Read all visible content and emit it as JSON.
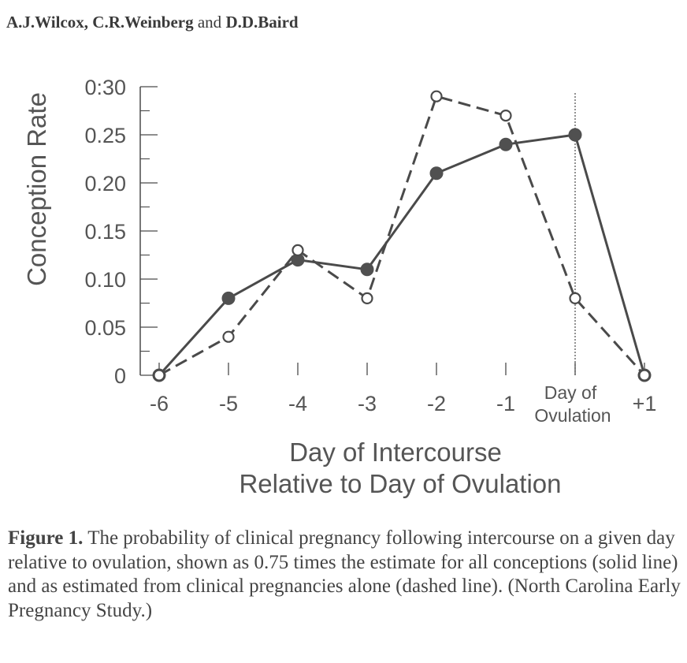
{
  "header": {
    "author1": "A.J.Wilcox,",
    "author2": "C.R.Weinberg",
    "conjunction": "and",
    "author3": "D.D.Baird"
  },
  "caption": {
    "label": "Figure 1.",
    "text": "The probability of clinical pregnancy following intercourse on a given day relative to ovulation, shown as 0.75 times the estimate for all conceptions (solid line) and as estimated from clinical pregnancies alone (dashed line). (North Carolina Early Pregnancy Study.)"
  },
  "chart_data": {
    "type": "line",
    "xlabel_line1": "Day of Intercourse",
    "xlabel_line2": "Relative to Day of Ovulation",
    "ylabel": "Conception Rate",
    "x": [
      -6,
      -5,
      -4,
      -3,
      -2,
      -1,
      0,
      1
    ],
    "x_tick_labels": [
      "-6",
      "-5",
      "-4",
      "-3",
      "-2",
      "-1",
      "",
      "+1"
    ],
    "ovulation_label_line1": "Day of",
    "ovulation_label_line2": "Ovulation",
    "y_ticks": [
      0,
      0.05,
      0.1,
      0.15,
      0.2,
      0.25,
      0.3
    ],
    "y_tick_labels": [
      "0",
      "0.05",
      "0.10",
      "0.15",
      "0.20",
      "0.25",
      "0:30"
    ],
    "ylim": [
      0,
      0.3
    ],
    "xlim": [
      -6,
      1
    ],
    "series": [
      {
        "style": "solid",
        "marker": "filled-circle",
        "values": [
          0.0,
          0.08,
          0.12,
          0.11,
          0.21,
          0.24,
          0.25,
          0.0
        ]
      },
      {
        "style": "dashed",
        "marker": "open-circle",
        "values": [
          0.0,
          0.04,
          0.13,
          0.08,
          0.29,
          0.27,
          0.08,
          0.0
        ]
      }
    ],
    "reference_line": {
      "x": 0,
      "style": "dotted"
    },
    "colors": {
      "line": "#4a4a4a",
      "marker_fill": "#505050",
      "text": "#555555"
    }
  }
}
